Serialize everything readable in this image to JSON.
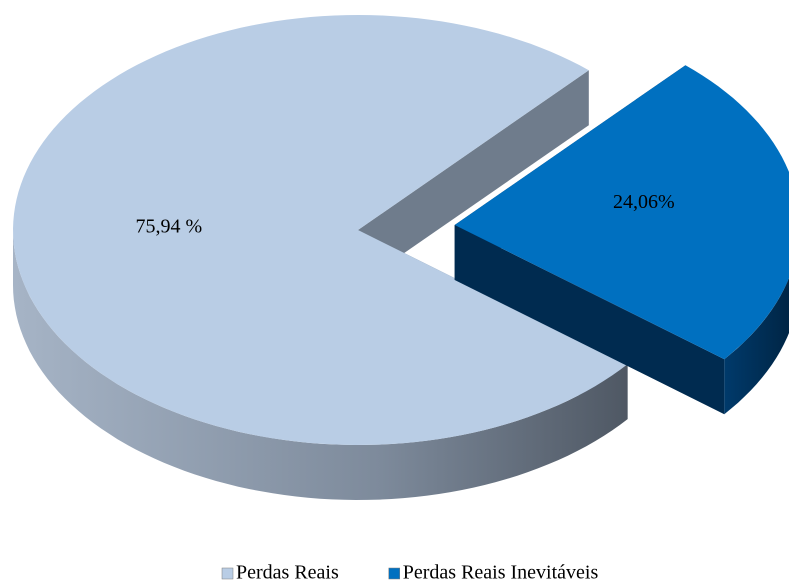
{
  "chart_data": {
    "type": "pie",
    "categories": [
      "Perdas Reais",
      "Perdas Reais Inevitáveis"
    ],
    "values": [
      75.94,
      24.06
    ],
    "value_labels": [
      "75,94 %",
      "24,06%"
    ],
    "colors": [
      "#b9cde5",
      "#0070c0"
    ],
    "legend": "bottom"
  }
}
